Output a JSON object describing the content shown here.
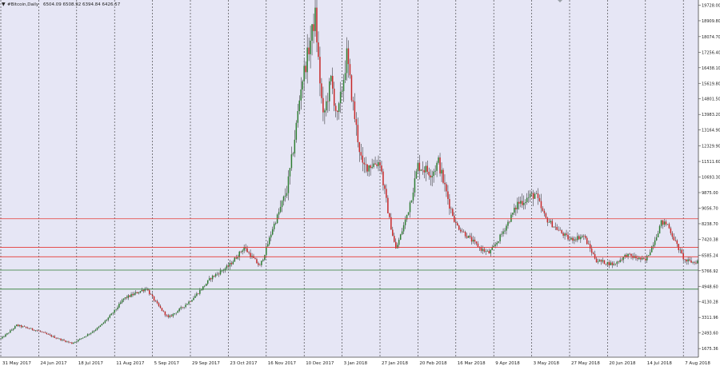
{
  "header": {
    "symbol_label": "#Bitcoin,Daily",
    "ohlc_text": "6504.09 6508.92 6394.84 6426.57"
  },
  "colors": {
    "background": "#e6e6f5",
    "candle_up": "#2e7d32",
    "candle_down": "#c62828",
    "wick": "#1f1f1f",
    "resistance_line": "#e53935",
    "support_line": "#2e7d32",
    "grid_line": "#333333",
    "label_text": "#222222"
  },
  "chart_data": {
    "type": "candlestick",
    "title": "#Bitcoin,Daily",
    "ylim": [
      1220,
      20000
    ],
    "y_ticks": [
      1675.36,
      2493.6,
      3311.96,
      4130.28,
      4948.6,
      5766.92,
      6585.24,
      7420.38,
      8238.7,
      9056.7,
      9875.0,
      10693.3,
      11511.6,
      12329.9,
      13164.9,
      13983.2,
      14801.5,
      15619.8,
      16438.1,
      17256.4,
      18074.7,
      18909.8,
      19728.0
    ],
    "x_tick_labels": [
      "31 May 2017",
      "24 Jun 2017",
      "18 Jul 2017",
      "11 Aug 2017",
      "5 Sep 2017",
      "29 Sep 2017",
      "23 Oct 2017",
      "16 Nov 2017",
      "10 Dec 2017",
      "3 Jan 2018",
      "27 Jan 2018",
      "20 Feb 2018",
      "16 Mar 2018",
      "9 Apr 2018",
      "3 May 2018",
      "27 May 2018",
      "20 Jun 2018",
      "14 Jul 2018",
      "7 Aug 2018"
    ],
    "grid": "vertical-dotted-at-ticks",
    "current_price": 6426.57,
    "anchor_prices": [
      {
        "date": "31 May 2017",
        "close": 2200
      },
      {
        "date": "10 Jun 2017",
        "close": 2900
      },
      {
        "date": "24 Jun 2017",
        "close": 2600
      },
      {
        "date": "15 Jul 2017",
        "close": 1950
      },
      {
        "date": "1 Aug 2017",
        "close": 2800
      },
      {
        "date": "17 Aug 2017",
        "close": 4300
      },
      {
        "date": "1 Sep 2017",
        "close": 4850
      },
      {
        "date": "15 Sep 2017",
        "close": 3300
      },
      {
        "date": "29 Sep 2017",
        "close": 4200
      },
      {
        "date": "12 Oct 2017",
        "close": 5400
      },
      {
        "date": "23 Oct 2017",
        "close": 6000
      },
      {
        "date": "2 Nov 2017",
        "close": 7000
      },
      {
        "date": "12 Nov 2017",
        "close": 6000
      },
      {
        "date": "20 Nov 2017",
        "close": 8000
      },
      {
        "date": "29 Nov 2017",
        "close": 10000
      },
      {
        "date": "8 Dec 2017",
        "close": 15500
      },
      {
        "date": "17 Dec 2017",
        "close": 19200
      },
      {
        "date": "22 Dec 2017",
        "close": 13800
      },
      {
        "date": "27 Dec 2017",
        "close": 15800
      },
      {
        "date": "31 Dec 2017",
        "close": 13800
      },
      {
        "date": "6 Jan 2018",
        "close": 17100
      },
      {
        "date": "16 Jan 2018",
        "close": 11200
      },
      {
        "date": "27 Jan 2018",
        "close": 11500
      },
      {
        "date": "6 Feb 2018",
        "close": 6900
      },
      {
        "date": "13 Feb 2018",
        "close": 8700
      },
      {
        "date": "20 Feb 2018",
        "close": 11300
      },
      {
        "date": "1 Mar 2018",
        "close": 10900
      },
      {
        "date": "5 Mar 2018",
        "close": 11500
      },
      {
        "date": "16 Mar 2018",
        "close": 8200
      },
      {
        "date": "1 Apr 2018",
        "close": 6900
      },
      {
        "date": "6 Apr 2018",
        "close": 6700
      },
      {
        "date": "9 Apr 2018",
        "close": 7000
      },
      {
        "date": "24 Apr 2018",
        "close": 9300
      },
      {
        "date": "5 May 2018",
        "close": 9800
      },
      {
        "date": "12 May 2018",
        "close": 8500
      },
      {
        "date": "27 May 2018",
        "close": 7400
      },
      {
        "date": "5 Jun 2018",
        "close": 7600
      },
      {
        "date": "13 Jun 2018",
        "close": 6300
      },
      {
        "date": "24 Jun 2018",
        "close": 6100
      },
      {
        "date": "2 Jul 2018",
        "close": 6600
      },
      {
        "date": "14 Jul 2018",
        "close": 6300
      },
      {
        "date": "24 Jul 2018",
        "close": 8300
      },
      {
        "date": "28 Jul 2018",
        "close": 8200
      },
      {
        "date": "8 Aug 2018",
        "close": 6300
      },
      {
        "date": "14 Aug 2018",
        "close": 6200
      },
      {
        "date": "20 Aug 2018",
        "close": 6426
      }
    ],
    "horizontal_lines": [
      {
        "price": 8500.0,
        "label": "8500.00",
        "color": "#e53935"
      },
      {
        "price": 7000.0,
        "label": "7000.00",
        "color": "#e53935"
      },
      {
        "price": 6500.0,
        "label": "6500.00",
        "color": "#e53935"
      },
      {
        "price": 5800.0,
        "label": "5800.00",
        "color": "#2e7d32"
      },
      {
        "price": 4800.0,
        "label": "4800.00",
        "color": "#2e7d32"
      }
    ]
  }
}
